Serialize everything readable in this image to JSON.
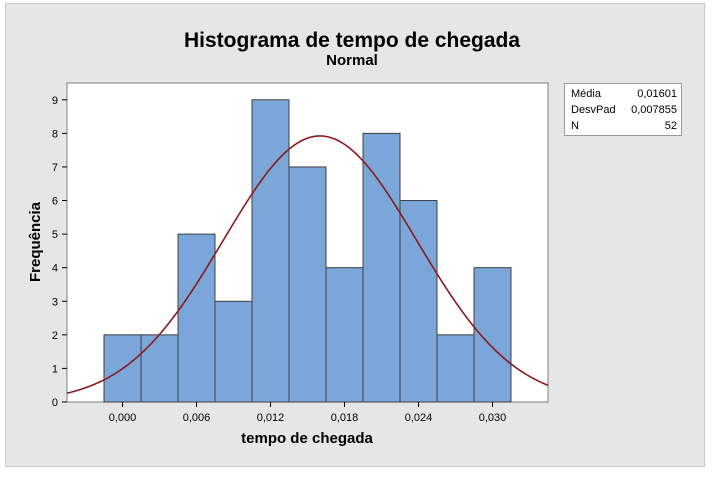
{
  "chart_data": {
    "type": "bar",
    "title": "Histograma de tempo de chegada",
    "subtitle": "Normal",
    "xlabel": "tempo de chegada",
    "ylabel": "Frequência",
    "bin_width": 0.003,
    "bins": [
      {
        "start": -0.0015,
        "end": 0.0015,
        "count": 2
      },
      {
        "start": 0.0015,
        "end": 0.0045,
        "count": 2
      },
      {
        "start": 0.0045,
        "end": 0.0075,
        "count": 5
      },
      {
        "start": 0.0075,
        "end": 0.0105,
        "count": 3
      },
      {
        "start": 0.0105,
        "end": 0.0135,
        "count": 9
      },
      {
        "start": 0.0135,
        "end": 0.0165,
        "count": 7
      },
      {
        "start": 0.0165,
        "end": 0.0195,
        "count": 4
      },
      {
        "start": 0.0195,
        "end": 0.0225,
        "count": 8
      },
      {
        "start": 0.0225,
        "end": 0.0255,
        "count": 6
      },
      {
        "start": 0.0255,
        "end": 0.0285,
        "count": 2
      },
      {
        "start": 0.0285,
        "end": 0.0315,
        "count": 4
      }
    ],
    "xlim": [
      -0.0045,
      0.0345
    ],
    "ylim": [
      0,
      9.5
    ],
    "x_ticks": [
      0.0,
      0.006,
      0.012,
      0.018,
      0.024,
      0.03
    ],
    "x_tick_labels": [
      "0,000",
      "0,006",
      "0,012",
      "0,018",
      "0,024",
      "0,030"
    ],
    "y_ticks": [
      0,
      1,
      2,
      3,
      4,
      5,
      6,
      7,
      8,
      9
    ],
    "y_tick_labels": [
      "0",
      "1",
      "2",
      "3",
      "4",
      "5",
      "6",
      "7",
      "8",
      "9"
    ],
    "fit": {
      "distribution": "normal",
      "mean": 0.01601,
      "stdev": 0.007855,
      "n": 52
    },
    "grid": false,
    "colors": {
      "bar_fill": "#7ba6da",
      "bar_stroke": "#3f3f3f",
      "curve": "#8b1a1a",
      "plot_bg": "#ffffff",
      "frame_bg": "#e6e6e6"
    }
  },
  "stats": [
    {
      "label": "Média",
      "value": "0,01601"
    },
    {
      "label": "DesvPad",
      "value": "0,007855"
    },
    {
      "label": "N",
      "value": "52"
    }
  ]
}
